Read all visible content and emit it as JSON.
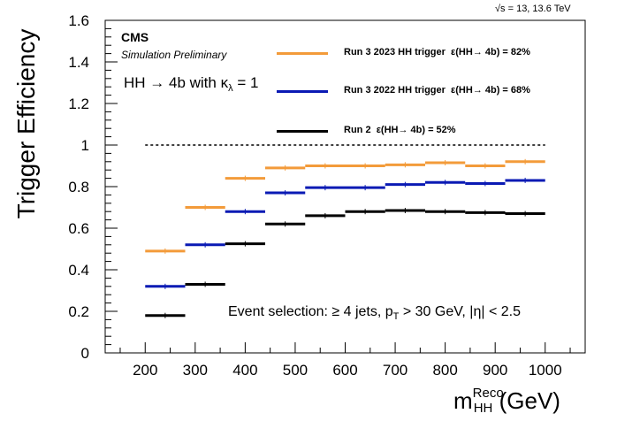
{
  "header": {
    "energy_label": "√s = 13, 13.6 TeV",
    "experiment": "CMS",
    "status": "Simulation Preliminary",
    "process_main": "HH → 4b with κ",
    "process_sub": "λ",
    "process_tail": " = 1",
    "selection_main": "Event selection: ≥ 4 jets, p",
    "selection_sub": "T",
    "selection_tail": " > 30 GeV, |η| < 2.5"
  },
  "axes": {
    "y_title": "Trigger Efficiency",
    "x_title_main": "m",
    "x_title_sup": "Reco",
    "x_title_sub": "HH",
    "x_title_unit": " (GeV)"
  },
  "colors": {
    "run3_2023": "#f39b3a",
    "run3_2022": "#0a1ab4",
    "run2": "#000000"
  },
  "chart_data": {
    "type": "line",
    "x_bin_edges": [
      200,
      280,
      360,
      440,
      520,
      600,
      680,
      760,
      840,
      920,
      1000
    ],
    "xlim": [
      120,
      1080
    ],
    "ylim": [
      0,
      1.6
    ],
    "x_ticks": [
      200,
      300,
      400,
      500,
      600,
      700,
      800,
      900,
      1000
    ],
    "y_ticks": [
      0,
      0.2,
      0.4,
      0.6,
      0.8,
      1,
      1.2,
      1.4,
      1.6
    ],
    "y_tick_labels": [
      "0",
      "0.2",
      "0.4",
      "0.6",
      "0.8",
      "1",
      "1.2",
      "1.4",
      "1.6"
    ],
    "reference_line": 1.0,
    "series": [
      {
        "name": "Run 3 2023 HH trigger",
        "efficiency_label": "ε(HH→ 4b) = 82%",
        "color": "#f39b3a",
        "values": [
          0.49,
          0.7,
          0.84,
          0.89,
          0.9,
          0.9,
          0.905,
          0.915,
          0.9,
          0.92
        ]
      },
      {
        "name": "Run 3 2022 HH trigger",
        "efficiency_label": "ε(HH→ 4b) = 68%",
        "color": "#0a1ab4",
        "values": [
          0.32,
          0.52,
          0.68,
          0.77,
          0.795,
          0.795,
          0.81,
          0.82,
          0.815,
          0.83
        ]
      },
      {
        "name": "Run 2",
        "efficiency_label": "ε(HH→ 4b) = 52%",
        "color": "#000000",
        "values": [
          0.18,
          0.33,
          0.525,
          0.62,
          0.66,
          0.68,
          0.685,
          0.68,
          0.675,
          0.67
        ]
      }
    ]
  }
}
